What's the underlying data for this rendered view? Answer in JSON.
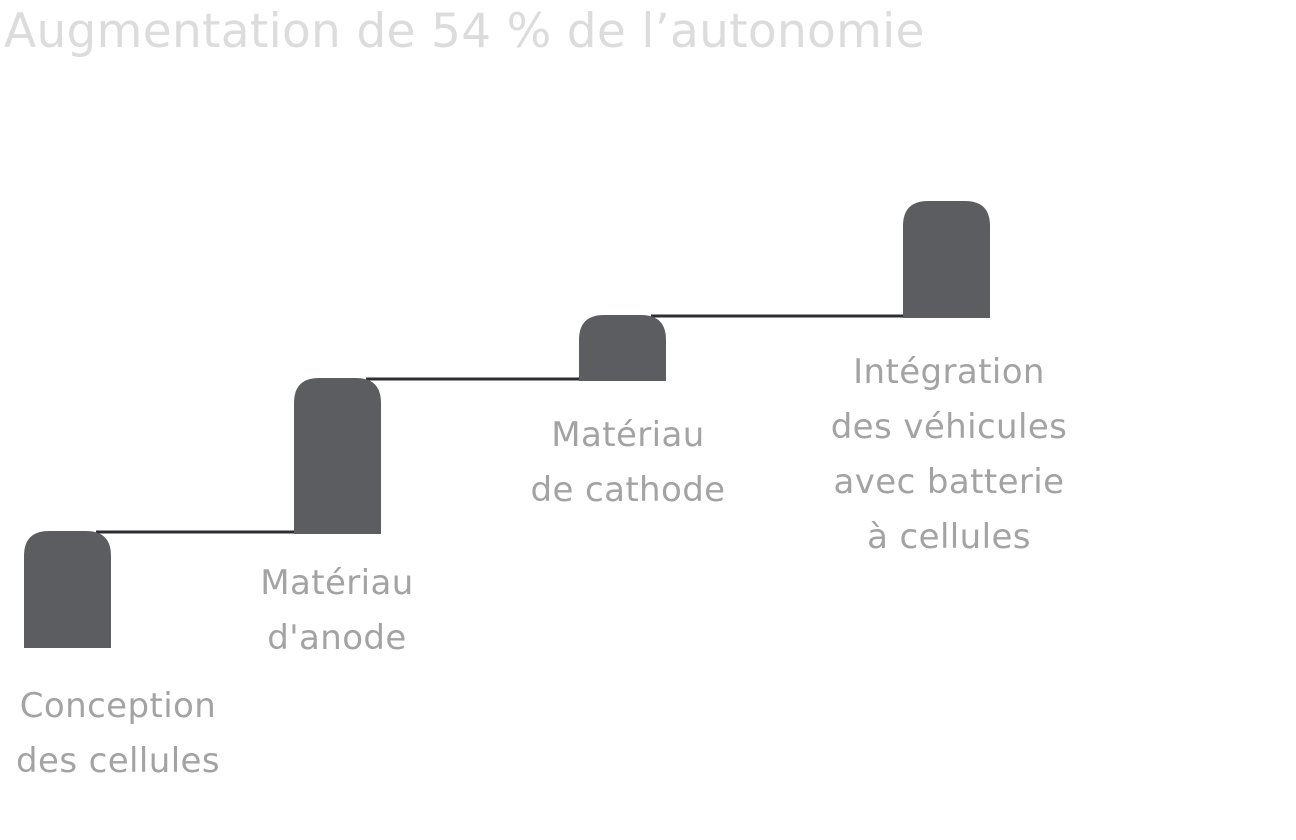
{
  "title": "Augmentation de 54 % de l’autonomie",
  "colors": {
    "title": "#dcdcdc",
    "block": "#5c5d61",
    "connector": "#2e2e32",
    "label": "#a3a3a3",
    "background": "#ffffff"
  },
  "steps": [
    {
      "lines": [
        "Conception",
        "des cellules"
      ]
    },
    {
      "lines": [
        "Matériau",
        "d'anode"
      ]
    },
    {
      "lines": [
        "Matériau",
        "de cathode"
      ]
    },
    {
      "lines": [
        "Intégration",
        "des véhicules",
        "avec batterie",
        "à cellules"
      ]
    }
  ]
}
